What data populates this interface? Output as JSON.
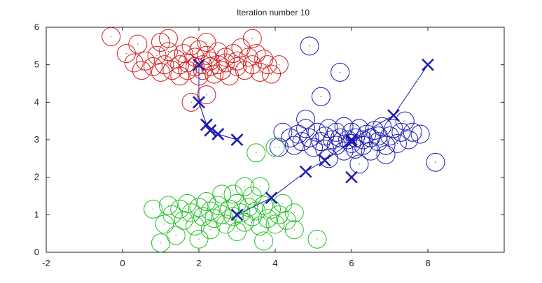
{
  "chart_data": {
    "type": "scatter",
    "title": "Iteration number 10",
    "xlim": [
      -2,
      10
    ],
    "ylim": [
      0,
      6
    ],
    "x_ticks": [
      "-2",
      "0",
      "2",
      "4",
      "6",
      "8"
    ],
    "y_ticks": [
      "0",
      "1",
      "2",
      "3",
      "4",
      "5",
      "6"
    ],
    "grid": false,
    "legend": "none",
    "series": [
      {
        "color": "#d42020",
        "marker": "open-circle",
        "points": [
          [
            -0.3,
            5.75
          ],
          [
            0.1,
            5.3
          ],
          [
            0.3,
            5.05
          ],
          [
            0.5,
            4.85
          ],
          [
            0.6,
            5.1
          ],
          [
            0.8,
            4.95
          ],
          [
            0.9,
            5.25
          ],
          [
            1.0,
            5.6
          ],
          [
            1.0,
            4.8
          ],
          [
            1.1,
            5.0
          ],
          [
            1.2,
            5.35
          ],
          [
            1.3,
            4.85
          ],
          [
            1.4,
            5.15
          ],
          [
            1.5,
            5.0
          ],
          [
            1.5,
            4.7
          ],
          [
            1.6,
            5.3
          ],
          [
            1.7,
            5.05
          ],
          [
            1.7,
            4.85
          ],
          [
            1.8,
            5.5
          ],
          [
            1.9,
            4.95
          ],
          [
            1.9,
            5.2
          ],
          [
            2.0,
            4.7
          ],
          [
            2.0,
            5.4
          ],
          [
            2.1,
            5.0
          ],
          [
            2.1,
            4.85
          ],
          [
            2.2,
            5.25
          ],
          [
            2.2,
            5.6
          ],
          [
            2.3,
            4.95
          ],
          [
            2.3,
            5.1
          ],
          [
            2.4,
            4.75
          ],
          [
            2.5,
            5.35
          ],
          [
            2.5,
            5.0
          ],
          [
            2.6,
            4.85
          ],
          [
            2.7,
            5.2
          ],
          [
            2.7,
            5.05
          ],
          [
            2.8,
            4.7
          ],
          [
            2.9,
            5.3
          ],
          [
            3.0,
            4.95
          ],
          [
            3.0,
            5.1
          ],
          [
            3.1,
            5.45
          ],
          [
            3.2,
            4.85
          ],
          [
            3.3,
            5.2
          ],
          [
            3.4,
            5.0
          ],
          [
            3.4,
            5.7
          ],
          [
            3.5,
            5.3
          ],
          [
            3.6,
            4.8
          ],
          [
            3.7,
            5.15
          ],
          [
            3.8,
            5.0
          ],
          [
            3.9,
            4.75
          ],
          [
            4.1,
            5.0
          ],
          [
            1.8,
            4.0
          ],
          [
            2.2,
            4.2
          ],
          [
            0.4,
            5.55
          ],
          [
            1.2,
            5.7
          ]
        ]
      },
      {
        "color": "#1c1cb4",
        "marker": "open-circle",
        "points": [
          [
            4.9,
            5.5
          ],
          [
            5.7,
            4.8
          ],
          [
            5.2,
            4.15
          ],
          [
            4.1,
            2.8
          ],
          [
            4.2,
            3.2
          ],
          [
            4.4,
            3.05
          ],
          [
            4.5,
            2.85
          ],
          [
            4.6,
            3.15
          ],
          [
            4.7,
            2.95
          ],
          [
            4.8,
            3.3
          ],
          [
            4.9,
            3.05
          ],
          [
            5.0,
            2.8
          ],
          [
            5.1,
            3.2
          ],
          [
            5.2,
            2.95
          ],
          [
            5.3,
            3.1
          ],
          [
            5.3,
            2.75
          ],
          [
            5.4,
            3.3
          ],
          [
            5.5,
            3.0
          ],
          [
            5.6,
            2.85
          ],
          [
            5.6,
            3.2
          ],
          [
            5.7,
            3.05
          ],
          [
            5.8,
            2.7
          ],
          [
            5.8,
            3.35
          ],
          [
            5.9,
            3.0
          ],
          [
            6.0,
            2.9
          ],
          [
            6.0,
            3.2
          ],
          [
            6.1,
            3.05
          ],
          [
            6.1,
            2.75
          ],
          [
            6.2,
            3.3
          ],
          [
            6.3,
            3.0
          ],
          [
            6.3,
            2.85
          ],
          [
            6.4,
            3.15
          ],
          [
            6.5,
            3.05
          ],
          [
            6.5,
            2.7
          ],
          [
            6.6,
            3.25
          ],
          [
            6.7,
            2.95
          ],
          [
            6.7,
            3.1
          ],
          [
            6.8,
            3.35
          ],
          [
            6.9,
            2.85
          ],
          [
            7.0,
            3.1
          ],
          [
            7.1,
            3.3
          ],
          [
            7.2,
            2.9
          ],
          [
            7.3,
            3.2
          ],
          [
            7.4,
            3.5
          ],
          [
            7.5,
            3.0
          ],
          [
            7.6,
            3.2
          ],
          [
            7.8,
            3.15
          ],
          [
            8.2,
            2.4
          ],
          [
            5.4,
            2.5
          ],
          [
            6.2,
            2.35
          ],
          [
            6.9,
            2.6
          ],
          [
            4.8,
            3.55
          ]
        ]
      },
      {
        "color": "#22c022",
        "marker": "open-circle",
        "points": [
          [
            1.0,
            0.25
          ],
          [
            1.1,
            0.75
          ],
          [
            1.2,
            1.25
          ],
          [
            0.8,
            1.15
          ],
          [
            1.3,
            1.0
          ],
          [
            1.5,
            1.15
          ],
          [
            1.6,
            0.85
          ],
          [
            1.7,
            1.3
          ],
          [
            1.8,
            1.05
          ],
          [
            1.9,
            0.7
          ],
          [
            2.0,
            1.2
          ],
          [
            2.1,
            0.95
          ],
          [
            2.2,
            1.35
          ],
          [
            2.3,
            1.1
          ],
          [
            2.3,
            0.6
          ],
          [
            2.4,
            0.9
          ],
          [
            2.5,
            1.25
          ],
          [
            2.6,
            1.0
          ],
          [
            2.7,
            0.75
          ],
          [
            2.8,
            1.15
          ],
          [
            2.9,
            0.95
          ],
          [
            3.0,
            1.3
          ],
          [
            3.0,
            0.55
          ],
          [
            3.1,
            1.05
          ],
          [
            3.2,
            0.8
          ],
          [
            3.3,
            1.2
          ],
          [
            3.4,
            0.95
          ],
          [
            3.4,
            1.5
          ],
          [
            3.5,
            1.1
          ],
          [
            3.6,
            0.7
          ],
          [
            3.7,
            1.25
          ],
          [
            3.8,
            0.9
          ],
          [
            3.9,
            1.15
          ],
          [
            4.0,
            0.75
          ],
          [
            4.1,
            1.0
          ],
          [
            4.2,
            1.3
          ],
          [
            4.3,
            0.85
          ],
          [
            4.5,
            0.6
          ],
          [
            4.5,
            1.05
          ],
          [
            5.1,
            0.35
          ],
          [
            3.2,
            1.75
          ],
          [
            2.6,
            1.55
          ],
          [
            1.4,
            0.45
          ],
          [
            2.0,
            0.35
          ],
          [
            3.7,
            0.3
          ],
          [
            3.5,
            2.65
          ],
          [
            4.0,
            2.8
          ],
          [
            3.6,
            1.75
          ],
          [
            2.9,
            1.55
          ]
        ]
      }
    ],
    "centroid_paths": [
      {
        "color": "#1c1cb4",
        "marker": "x",
        "points": [
          [
            2.0,
            4.0
          ],
          [
            2.2,
            3.4
          ],
          [
            2.3,
            3.25
          ],
          [
            2.5,
            3.15
          ],
          [
            3.0,
            3.0
          ]
        ]
      },
      {
        "color": "#1c1cb4",
        "marker": "x",
        "points": [
          [
            2.0,
            5.0
          ],
          [
            2.0,
            4.0
          ],
          [
            2.2,
            3.4
          ],
          [
            2.3,
            3.25
          ],
          [
            2.5,
            3.15
          ],
          [
            3.0,
            3.0
          ]
        ]
      },
      {
        "color": "#1c1cb4",
        "marker": "x",
        "points": [
          [
            3.0,
            1.0
          ],
          [
            3.9,
            1.45
          ],
          [
            4.8,
            2.15
          ],
          [
            5.3,
            2.45
          ],
          [
            6.0,
            2.95
          ]
        ]
      },
      {
        "color": "#1c1cb4",
        "marker": "x",
        "points": [
          [
            8.0,
            5.0
          ],
          [
            7.1,
            3.65
          ],
          [
            6.0,
            3.0
          ]
        ]
      }
    ],
    "extra_markers": [
      {
        "color": "#1c1cb4",
        "marker": "x",
        "point": [
          6.0,
          2.0
        ]
      }
    ]
  }
}
